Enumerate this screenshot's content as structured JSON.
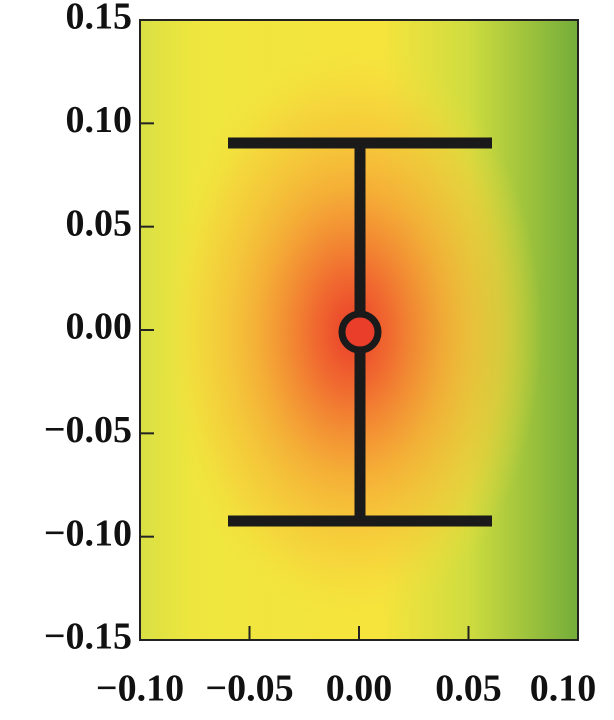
{
  "chart_data": {
    "type": "contour",
    "xlim": [
      -0.1,
      0.1
    ],
    "ylim": [
      -0.15,
      0.15
    ],
    "xticks": [
      {
        "value": -0.1,
        "label": "−0.10"
      },
      {
        "value": -0.05,
        "label": "−0.05"
      },
      {
        "value": 0,
        "label": "0.00"
      },
      {
        "value": 0.05,
        "label": "0.05"
      },
      {
        "value": 0.1,
        "label": "0.10"
      }
    ],
    "yticks": [
      {
        "value": 0.15,
        "label": "0.15"
      },
      {
        "value": 0.1,
        "label": "0.10"
      },
      {
        "value": 0.05,
        "label": "0.05"
      },
      {
        "value": 0,
        "label": "0.00"
      },
      {
        "value": -0.05,
        "label": "−0.05"
      },
      {
        "value": -0.1,
        "label": "−0.10"
      },
      {
        "value": -0.15,
        "label": "−0.15"
      }
    ]
  }
}
